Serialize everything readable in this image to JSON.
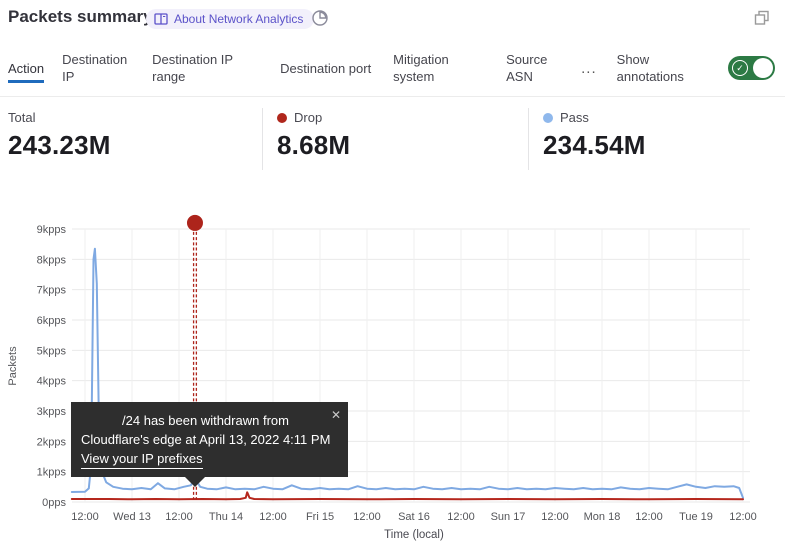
{
  "header": {
    "title": "Packets summary",
    "about_badge": "About Network Analytics"
  },
  "tabs": {
    "items": [
      {
        "label": "Action",
        "active": true
      },
      {
        "label": "Destination IP",
        "active": false
      },
      {
        "label": "Destination IP range",
        "active": false
      },
      {
        "label": "Destination port",
        "active": false
      },
      {
        "label": "Mitigation system",
        "active": false
      },
      {
        "label": "Source ASN",
        "active": false
      }
    ],
    "more_label": "...",
    "show_annotations_label": "Show annotations",
    "toggle_on": true,
    "toggle_check": "✓"
  },
  "stats": [
    {
      "label": "Total",
      "value": "243.23M"
    },
    {
      "label": "Drop",
      "value": "8.68M",
      "dot_color": "#b0271c"
    },
    {
      "label": "Pass",
      "value": "234.54M",
      "dot_color": "#8fb8ec"
    }
  ],
  "tooltip": {
    "line1": "/24 has been withdrawn from",
    "line2": "Cloudflare's edge at April 13, 2022 4:11 PM",
    "link": "View your IP prefixes",
    "close_icon": "✕"
  },
  "colors": {
    "pass_line": "#7fa9e2",
    "drop_line": "#b5271d",
    "annotation_red": "#ad241b",
    "active_tab_underline": "#1f6bbd",
    "toggle_green": "#2c7a44",
    "badge_text": "#5b52c9"
  },
  "chart_data": {
    "type": "line",
    "ylabel": "Packets",
    "xlabel": "Time (local)",
    "x_unit_per_tick_hours": 12,
    "x_ticks": [
      "12:00",
      "Wed 13",
      "12:00",
      "Thu 14",
      "12:00",
      "Fri 15",
      "12:00",
      "Sat 16",
      "12:00",
      "Sun 17",
      "12:00",
      "Mon 18",
      "12:00",
      "Tue 19",
      "12:00"
    ],
    "y_ticks": [
      {
        "label": "9kpps",
        "v": 9
      },
      {
        "label": "8kpps",
        "v": 8
      },
      {
        "label": "7kpps",
        "v": 7
      },
      {
        "label": "6kpps",
        "v": 6
      },
      {
        "label": "5kpps",
        "v": 5
      },
      {
        "label": "4kpps",
        "v": 4
      },
      {
        "label": "3kpps",
        "v": 3
      },
      {
        "label": "2kpps",
        "v": 2
      },
      {
        "label": "1kpps",
        "v": 1
      },
      {
        "label": "0pps",
        "v": 0
      }
    ],
    "ylim": [
      0,
      9.3
    ],
    "series": [
      {
        "name": "Pass",
        "color": "#7fa9e2",
        "points": [
          [
            -0.28,
            0.33
          ],
          [
            0,
            0.34
          ],
          [
            0.08,
            0.45
          ],
          [
            0.13,
            1.2
          ],
          [
            0.18,
            8.0
          ],
          [
            0.21,
            8.35
          ],
          [
            0.25,
            7.2
          ],
          [
            0.3,
            2.2
          ],
          [
            0.36,
            1.0
          ],
          [
            0.45,
            0.65
          ],
          [
            0.6,
            0.5
          ],
          [
            0.8,
            0.44
          ],
          [
            1.0,
            0.42
          ],
          [
            1.2,
            0.46
          ],
          [
            1.4,
            0.42
          ],
          [
            1.55,
            0.62
          ],
          [
            1.7,
            0.45
          ],
          [
            1.9,
            0.42
          ],
          [
            2.1,
            0.5
          ],
          [
            2.25,
            0.55
          ],
          [
            2.34,
            0.78
          ],
          [
            2.45,
            0.5
          ],
          [
            2.6,
            0.44
          ],
          [
            2.8,
            0.42
          ],
          [
            3.0,
            0.48
          ],
          [
            3.2,
            0.42
          ],
          [
            3.4,
            0.44
          ],
          [
            3.6,
            0.42
          ],
          [
            3.8,
            0.5
          ],
          [
            4.0,
            0.44
          ],
          [
            4.2,
            0.42
          ],
          [
            4.4,
            0.55
          ],
          [
            4.6,
            0.44
          ],
          [
            4.8,
            0.42
          ],
          [
            5.0,
            0.46
          ],
          [
            5.2,
            0.42
          ],
          [
            5.4,
            0.44
          ],
          [
            5.6,
            0.42
          ],
          [
            5.8,
            0.52
          ],
          [
            6.0,
            0.44
          ],
          [
            6.2,
            0.42
          ],
          [
            6.4,
            0.46
          ],
          [
            6.6,
            0.42
          ],
          [
            6.8,
            0.44
          ],
          [
            7.0,
            0.42
          ],
          [
            7.2,
            0.5
          ],
          [
            7.4,
            0.44
          ],
          [
            7.6,
            0.42
          ],
          [
            7.8,
            0.46
          ],
          [
            8.0,
            0.42
          ],
          [
            8.2,
            0.44
          ],
          [
            8.4,
            0.42
          ],
          [
            8.6,
            0.5
          ],
          [
            8.8,
            0.44
          ],
          [
            9.0,
            0.42
          ],
          [
            9.2,
            0.46
          ],
          [
            9.4,
            0.42
          ],
          [
            9.6,
            0.44
          ],
          [
            9.8,
            0.42
          ],
          [
            10.0,
            0.46
          ],
          [
            10.2,
            0.44
          ],
          [
            10.4,
            0.42
          ],
          [
            10.6,
            0.46
          ],
          [
            10.8,
            0.42
          ],
          [
            11.0,
            0.44
          ],
          [
            11.2,
            0.42
          ],
          [
            11.4,
            0.48
          ],
          [
            11.6,
            0.44
          ],
          [
            11.8,
            0.42
          ],
          [
            12.0,
            0.46
          ],
          [
            12.2,
            0.44
          ],
          [
            12.4,
            0.42
          ],
          [
            12.6,
            0.5
          ],
          [
            12.8,
            0.58
          ],
          [
            13.0,
            0.5
          ],
          [
            13.2,
            0.46
          ],
          [
            13.4,
            0.52
          ],
          [
            13.6,
            0.5
          ],
          [
            13.8,
            0.52
          ],
          [
            13.92,
            0.46
          ],
          [
            14.0,
            0.14
          ]
        ]
      },
      {
        "name": "Drop",
        "color": "#b5271d",
        "points": [
          [
            -0.28,
            0.1
          ],
          [
            0.5,
            0.1
          ],
          [
            1.0,
            0.09
          ],
          [
            1.5,
            0.1
          ],
          [
            2.0,
            0.09
          ],
          [
            2.5,
            0.1
          ],
          [
            3.0,
            0.09
          ],
          [
            3.3,
            0.1
          ],
          [
            3.42,
            0.14
          ],
          [
            3.45,
            0.32
          ],
          [
            3.5,
            0.14
          ],
          [
            3.6,
            0.1
          ],
          [
            4.0,
            0.09
          ],
          [
            5.0,
            0.1
          ],
          [
            6.0,
            0.09
          ],
          [
            7.0,
            0.1
          ],
          [
            8.0,
            0.09
          ],
          [
            9.0,
            0.1
          ],
          [
            10.0,
            0.09
          ],
          [
            11.0,
            0.1
          ],
          [
            12.0,
            0.09
          ],
          [
            13.0,
            0.1
          ],
          [
            14.0,
            0.09
          ]
        ]
      }
    ],
    "annotation": {
      "t": 2.34,
      "dot_value": 9.2,
      "color": "#ad241b"
    }
  }
}
